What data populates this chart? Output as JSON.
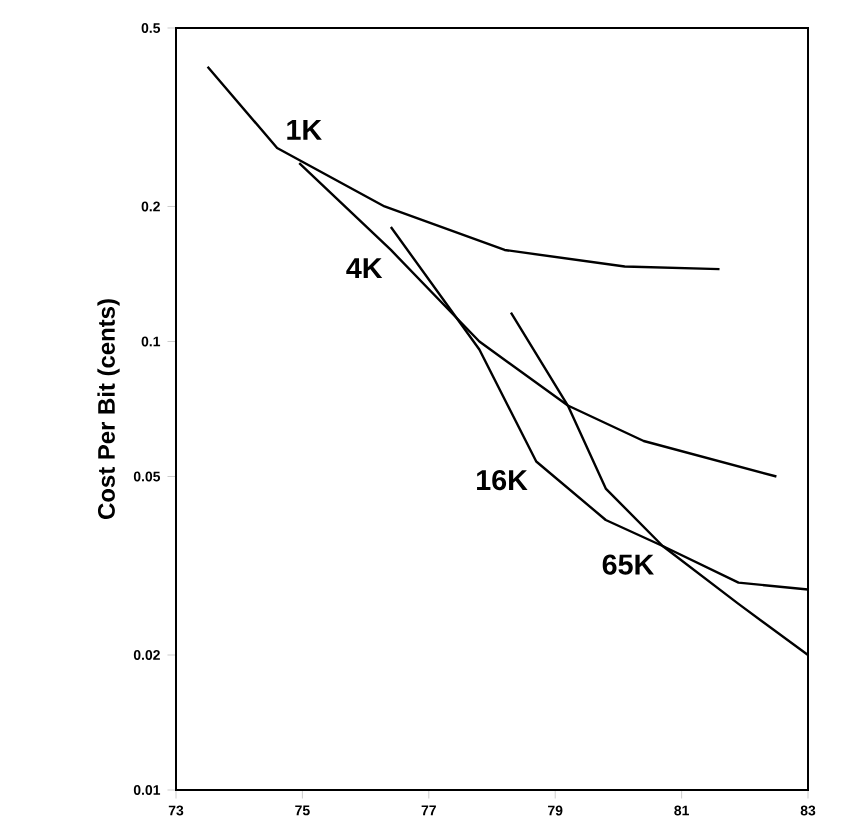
{
  "chart_data": {
    "type": "line",
    "ylabel": "Cost Per Bit (cents)",
    "log": true,
    "xlim": [
      73,
      83
    ],
    "xticks": [
      73,
      75,
      77,
      79,
      81,
      83
    ],
    "ylim": [
      0.01,
      0.5
    ],
    "yticks": [
      0.01,
      0.02,
      0.05,
      0.1,
      0.2,
      0.5
    ],
    "series": [
      {
        "name": "1K",
        "color": "#000000",
        "x": [
          73.5,
          74.6,
          76.3,
          78.2,
          80.1,
          81.6
        ],
        "values": [
          0.41,
          0.27,
          0.2,
          0.16,
          0.147,
          0.145
        ]
      },
      {
        "name": "4K",
        "color": "#000000",
        "x": [
          74.95,
          76.4,
          77.8,
          79.2,
          80.4,
          82.5
        ],
        "values": [
          0.25,
          0.16,
          0.1,
          0.072,
          0.06,
          0.05
        ]
      },
      {
        "name": "16K",
        "color": "#000000",
        "x": [
          76.4,
          77.8,
          78.7,
          79.8,
          80.7,
          81.9,
          83
        ],
        "values": [
          0.18,
          0.096,
          0.054,
          0.04,
          0.035,
          0.029,
          0.028
        ]
      },
      {
        "name": "65K",
        "color": "#000000",
        "x": [
          78.3,
          79.2,
          79.8,
          80.7,
          81.9,
          83
        ],
        "values": [
          0.116,
          0.072,
          0.047,
          0.035,
          0.026,
          0.02
        ]
      }
    ]
  }
}
